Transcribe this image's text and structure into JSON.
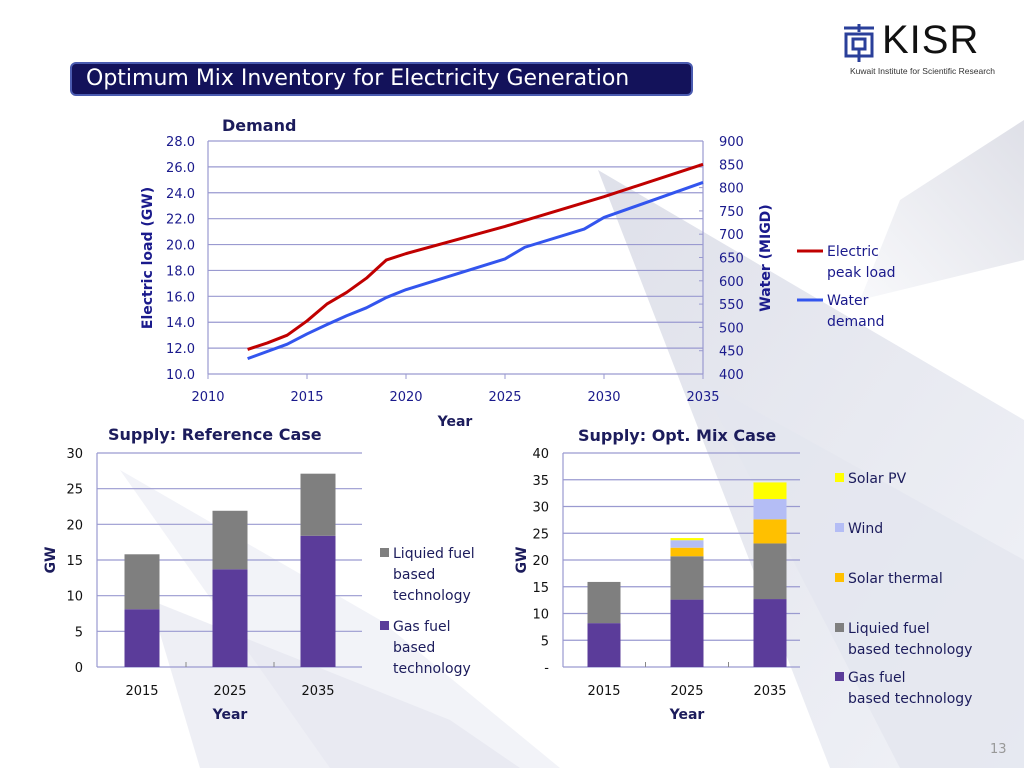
{
  "slide": {
    "title": "Optimum Mix Inventory for Electricity Generation",
    "logo": {
      "name": "KISR",
      "subtitle": "Kuwait Institute for Scientific Research"
    },
    "page_number": "13"
  },
  "colors": {
    "title_bar": "#13125a",
    "electric": "#c00000",
    "water": "#3355ee",
    "gas": "#5b3c9a",
    "liquid": "#7f7f7f",
    "solar_thermal": "#ffc000",
    "wind": "#b4bdf5",
    "solar_pv": "#ffff00",
    "axis_text": "#1a1a8c",
    "grid": "#9a9ad0"
  },
  "chart_data": [
    {
      "type": "line",
      "title": "Demand",
      "xlabel": "Year",
      "ylabel": "Electric load (GW)",
      "ylabel_right": "Water (MIGD)",
      "xlim": [
        2010,
        2035
      ],
      "ylim": [
        10,
        28
      ],
      "ylim_right": [
        400,
        900
      ],
      "xticks": [
        "2010",
        "2015",
        "2020",
        "2025",
        "2030",
        "2035"
      ],
      "yticks": [
        "10.0",
        "12.0",
        "14.0",
        "16.0",
        "18.0",
        "20.0",
        "22.0",
        "24.0",
        "26.0",
        "28.0"
      ],
      "yticks_right": [
        "400",
        "450",
        "500",
        "550",
        "600",
        "650",
        "700",
        "750",
        "800",
        "850",
        "900"
      ],
      "grid": true,
      "legend": "right",
      "series": [
        {
          "name": "Electric peak load",
          "axis": "left",
          "x": [
            2012,
            2013,
            2014,
            2015,
            2016,
            2017,
            2018,
            2019,
            2020,
            2025,
            2030,
            2035
          ],
          "y": [
            11.9,
            12.4,
            13.0,
            14.1,
            15.4,
            16.3,
            17.4,
            18.8,
            19.3,
            21.4,
            23.7,
            26.2
          ]
        },
        {
          "name": "Water demand",
          "axis": "right",
          "x": [
            2012,
            2014,
            2015,
            2016,
            2017,
            2018,
            2019,
            2020,
            2025,
            2026,
            2029,
            2030,
            2035
          ],
          "y": [
            433,
            464,
            486,
            506,
            525,
            542,
            564,
            581,
            647,
            672,
            711,
            736,
            811
          ]
        }
      ]
    },
    {
      "type": "bar",
      "stacked": true,
      "title": "Supply: Reference Case",
      "xlabel": "Year",
      "ylabel": "GW",
      "ylim": [
        0,
        30
      ],
      "yticks": [
        "0",
        "5",
        "10",
        "15",
        "20",
        "25",
        "30"
      ],
      "categories": [
        "2015",
        "2025",
        "2035"
      ],
      "grid": true,
      "legend": "right",
      "series": [
        {
          "name": "Gas fuel based technology",
          "label_lines": [
            "Gas fuel",
            "based",
            "technology"
          ],
          "values": [
            8.1,
            13.7,
            18.4
          ]
        },
        {
          "name": "Liquied fuel based technology",
          "label_lines": [
            "Liquied fuel",
            "based",
            "technology"
          ],
          "values": [
            7.7,
            8.2,
            8.7
          ]
        }
      ]
    },
    {
      "type": "bar",
      "stacked": true,
      "title": "Supply: Opt. Mix Case",
      "xlabel": "Year",
      "ylabel": "GW",
      "ylim": [
        0,
        40
      ],
      "yticks": [
        "-",
        "5",
        "10",
        "15",
        "20",
        "25",
        "30",
        "35",
        "40"
      ],
      "categories": [
        "2015",
        "2025",
        "2035"
      ],
      "grid": true,
      "legend": "right",
      "series": [
        {
          "name": "Gas fuel based technology",
          "label_lines": [
            "Gas fuel",
            "based technology"
          ],
          "values": [
            8.2,
            12.6,
            12.7
          ]
        },
        {
          "name": "Liquied fuel based technology",
          "label_lines": [
            "Liquied fuel",
            "based technology"
          ],
          "values": [
            7.7,
            8.1,
            10.4
          ]
        },
        {
          "name": "Solar thermal",
          "label_lines": [
            "Solar thermal"
          ],
          "values": [
            0,
            1.6,
            4.5
          ]
        },
        {
          "name": "Wind",
          "label_lines": [
            "Wind"
          ],
          "values": [
            0,
            1.4,
            3.8
          ]
        },
        {
          "name": "Solar PV",
          "label_lines": [
            "Solar PV"
          ],
          "values": [
            0,
            0.4,
            3.1
          ]
        }
      ]
    }
  ]
}
